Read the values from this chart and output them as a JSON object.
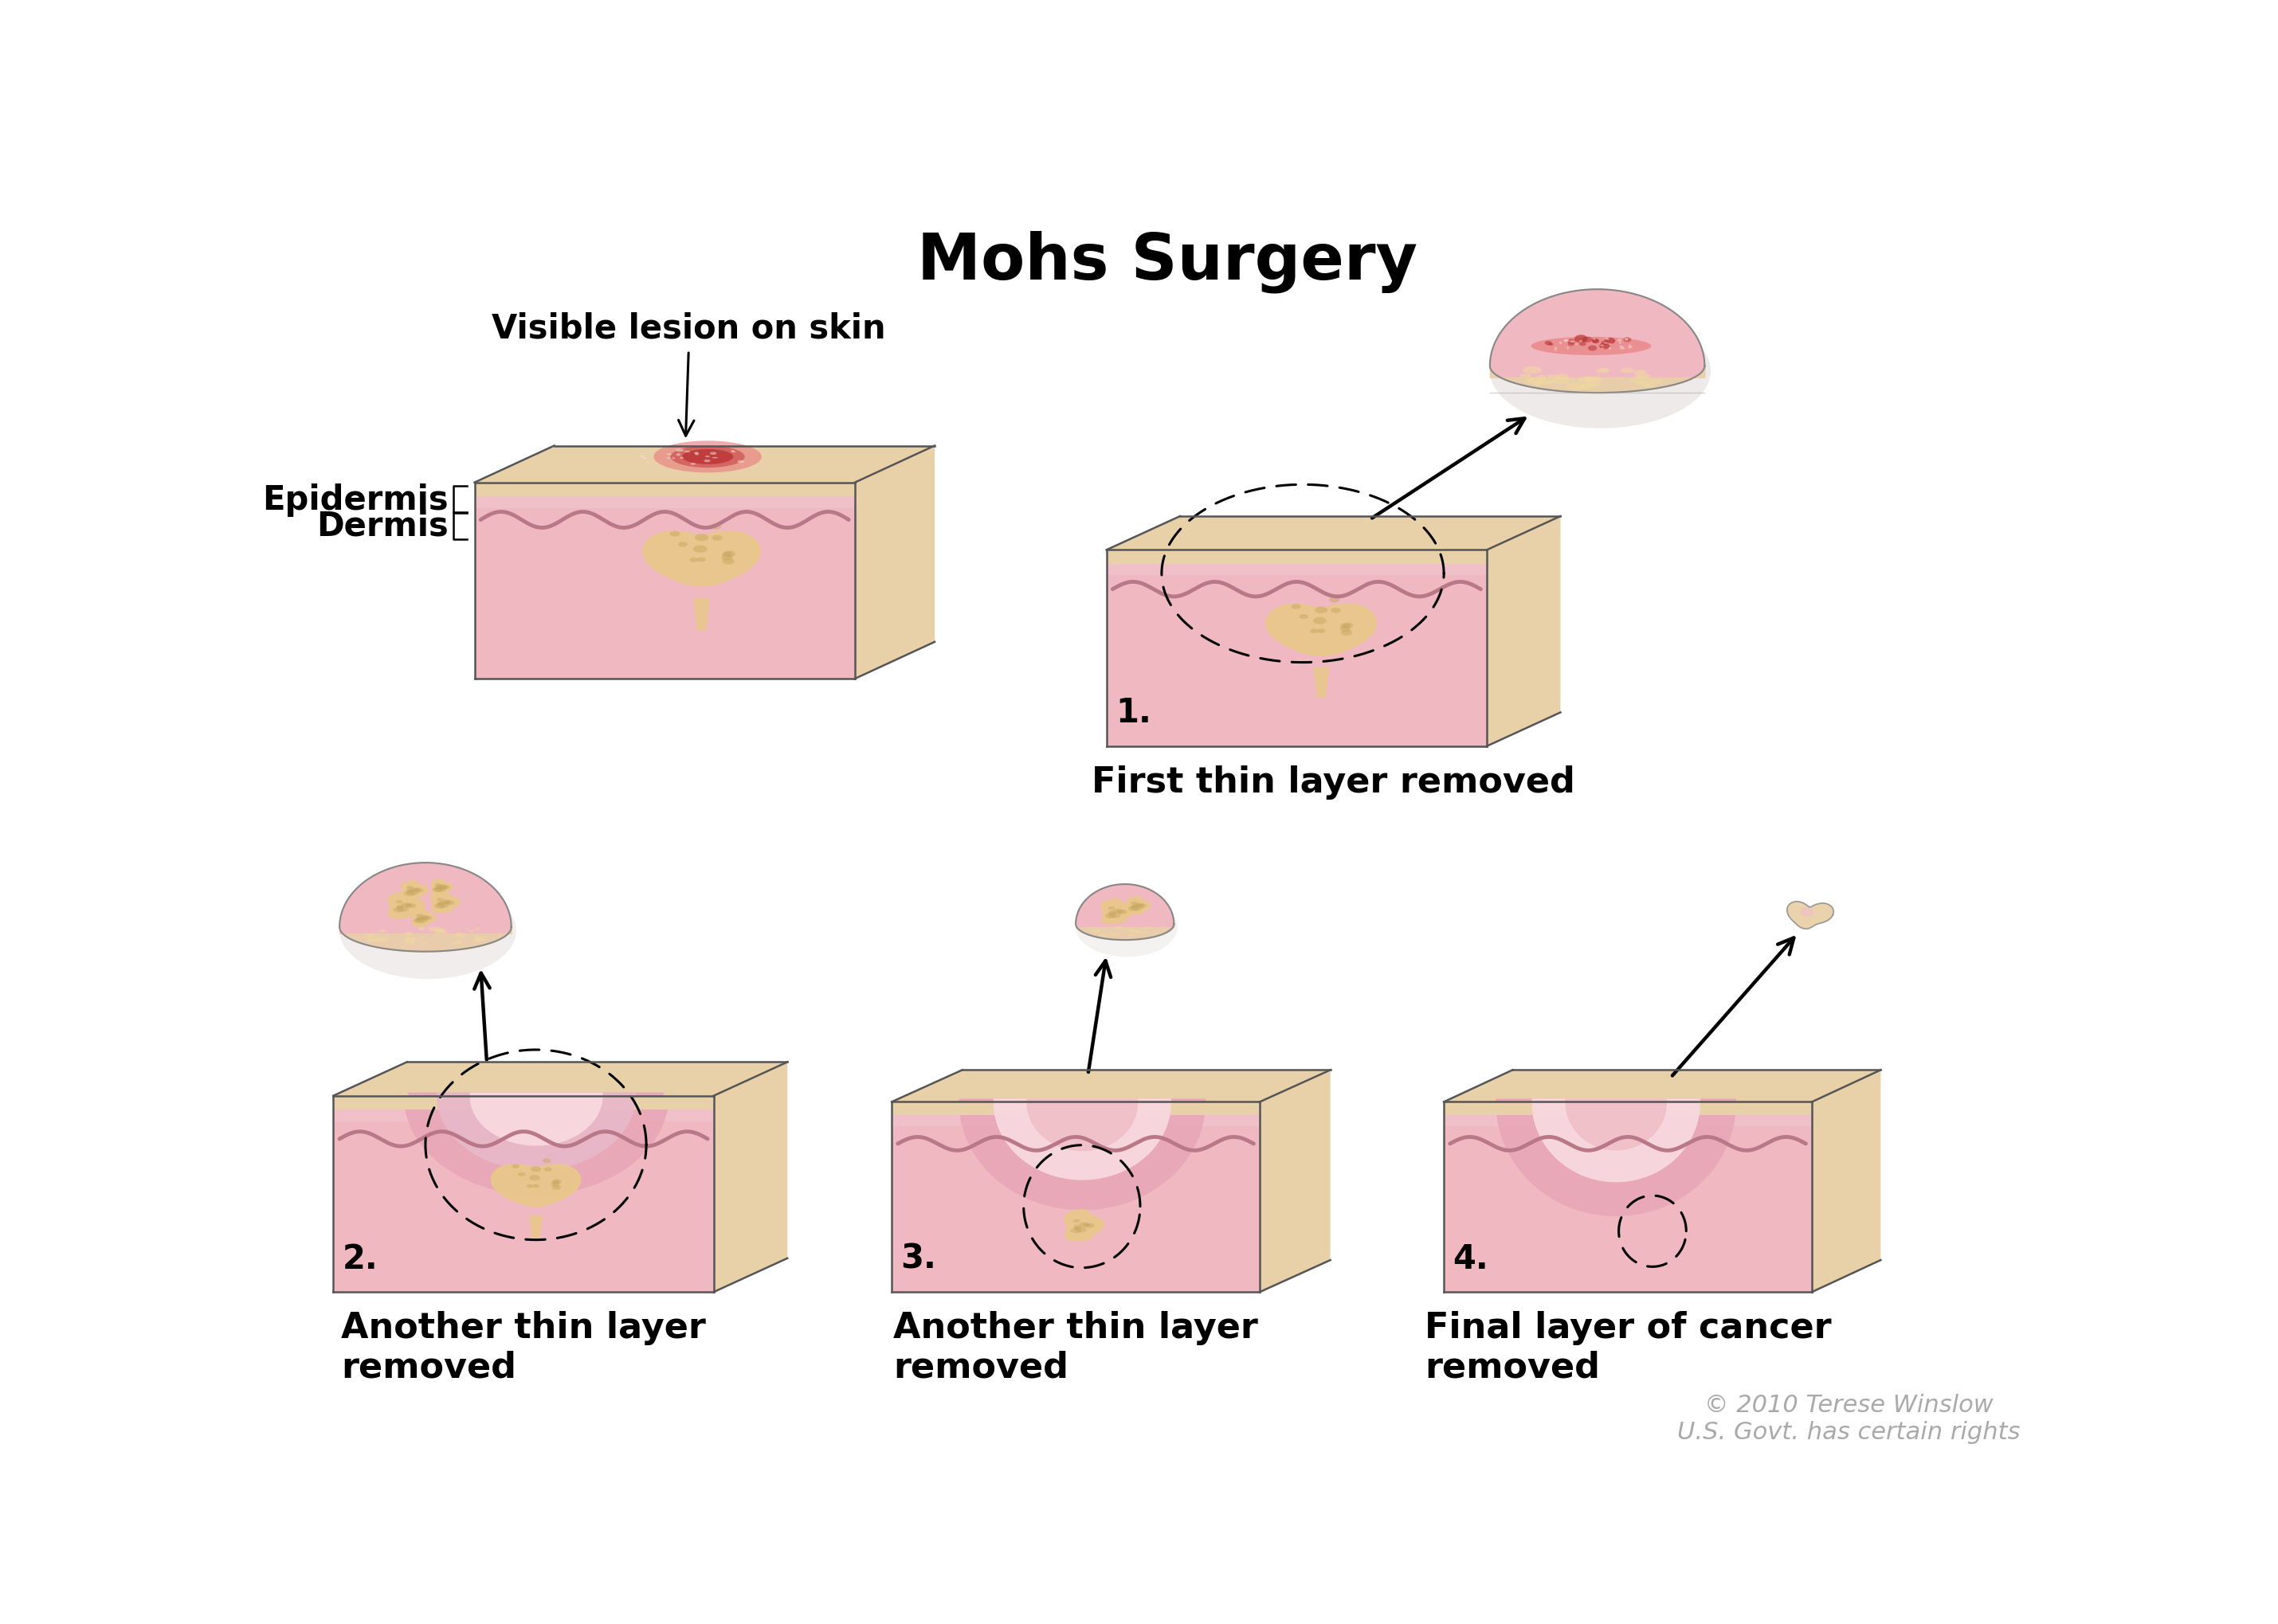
{
  "title": "Mohs Surgery",
  "title_fontsize": 58,
  "title_fontweight": "bold",
  "bg_color": "#ffffff",
  "skin_tan_color": "#e8d0a8",
  "epidermis_color": "#f0c0c8",
  "dermis_color": "#f0b8c0",
  "dermis_light": "#f8d8e0",
  "deep_pink": "#e8a8b8",
  "deeper_pink": "#e090a8",
  "cavity_inner": "#e8b8c8",
  "lesion_dark": "#b83030",
  "lesion_mid": "#cc5050",
  "lesion_light": "#e88080",
  "tumor_main": "#e8c88a",
  "tumor_light": "#f0d8a0",
  "tumor_dark": "#c8a860",
  "wavy_color": "#b87888",
  "outline_color": "#555555",
  "label_fontsize": 30,
  "caption_fontsize": 32,
  "number_fontsize": 30,
  "copyright_color": "#aaaaaa",
  "copyright_fontsize": 22,
  "label_epidermis": "Epidermis",
  "label_dermis": "Dermis",
  "label_visible_lesion": "Visible lesion on skin",
  "label_1": "1.",
  "label_2": "2.",
  "label_3": "3.",
  "label_4": "4.",
  "caption_1": "First thin layer removed",
  "caption_2": "Another thin layer\nremoved",
  "caption_3": "Another thin layer\nremoved",
  "caption_4": "Final layer of cancer\nremoved",
  "copyright": "© 2010 Terese Winslow\nU.S. Govt. has certain rights"
}
